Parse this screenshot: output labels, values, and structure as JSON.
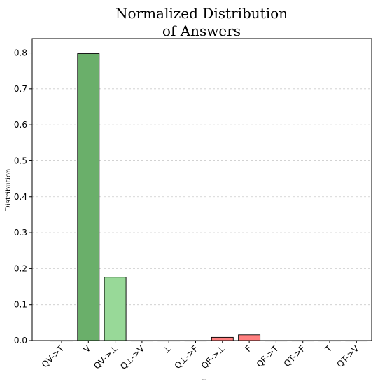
{
  "chart_data": {
    "type": "bar",
    "title_lines": [
      "Normalized Distribution",
      "of Answers"
    ],
    "ylabel": "Distribution",
    "xlabel": "tier",
    "ylim": [
      0,
      0.84
    ],
    "yticks": [
      0.0,
      0.1,
      0.2,
      0.3,
      0.4,
      0.5,
      0.6,
      0.7,
      0.8
    ],
    "ytick_labels": [
      "0.0",
      "0.1",
      "0.2",
      "0.3",
      "0.4",
      "0.5",
      "0.6",
      "0.7",
      "0.8"
    ],
    "grid": true,
    "categories": [
      "QV->T",
      "V",
      "QV->⊥",
      "Q⊥->V",
      "⊥",
      "Q⊥->F",
      "QF->⊥",
      "F",
      "QF->T",
      "QT->F",
      "T",
      "QT->V"
    ],
    "values": [
      0.0,
      0.798,
      0.176,
      0.0,
      0.0,
      0.0,
      0.009,
      0.016,
      0.0,
      0.0,
      0.0,
      0.0
    ],
    "colors": [
      "#6aaf6a",
      "#6aaf6a",
      "#98d998",
      "#98d998",
      "#98d998",
      "#ff7f7f",
      "#ff7f7f",
      "#ff7f7f",
      "#ff7f7f",
      "#ff7f7f",
      "#ff7f7f",
      "#ff7f7f"
    ]
  }
}
